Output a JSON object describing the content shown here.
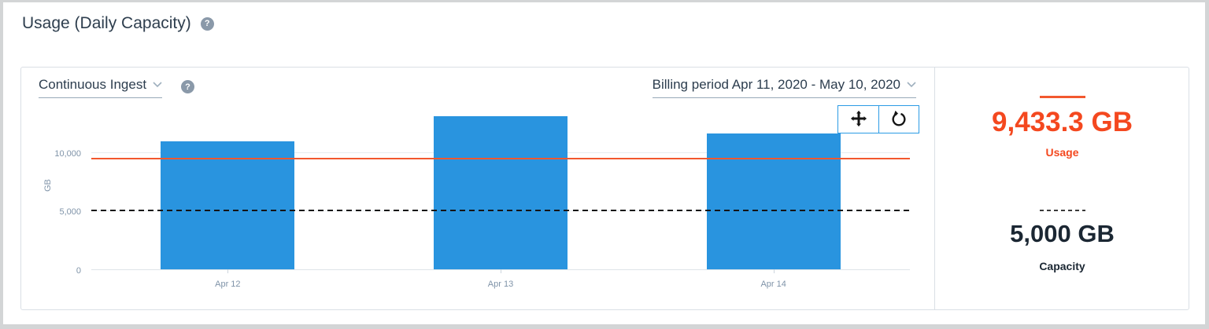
{
  "header": {
    "title": "Usage (Daily Capacity)",
    "help_glyph": "?"
  },
  "panel": {
    "ingest_selector_label": "Continuous Ingest",
    "billing_selector_label": "Billing period Apr 11, 2020 - May 10, 2020"
  },
  "toolbar": {
    "buttons": [
      {
        "icon": "pan-icon"
      },
      {
        "icon": "reset-zoom-icon"
      }
    ]
  },
  "chart_data": {
    "type": "bar",
    "title": "",
    "categories": [
      "Apr 12",
      "Apr 13",
      "Apr 14"
    ],
    "values": [
      10900,
      13050,
      11600
    ],
    "xlabel": "",
    "ylabel": "GB",
    "yticks": [
      0,
      5000,
      10000
    ],
    "ytick_labels": [
      "0",
      "5,000",
      "10,000"
    ],
    "ylim": [
      0,
      13533
    ],
    "grid": true,
    "legend_position": "none",
    "bar_color": "#2994df",
    "reference_lines": [
      {
        "name": "Usage",
        "value": 9433.3,
        "style": "solid",
        "color": "#f2582e"
      },
      {
        "name": "Capacity",
        "value": 5000,
        "style": "dashed",
        "color": "#141414"
      }
    ]
  },
  "stats": {
    "usage": {
      "value": "9,433.3 GB",
      "label": "Usage",
      "color": "#f4481f"
    },
    "capacity": {
      "value": "5,000 GB",
      "label": "Capacity",
      "color": "#1b2733"
    }
  }
}
